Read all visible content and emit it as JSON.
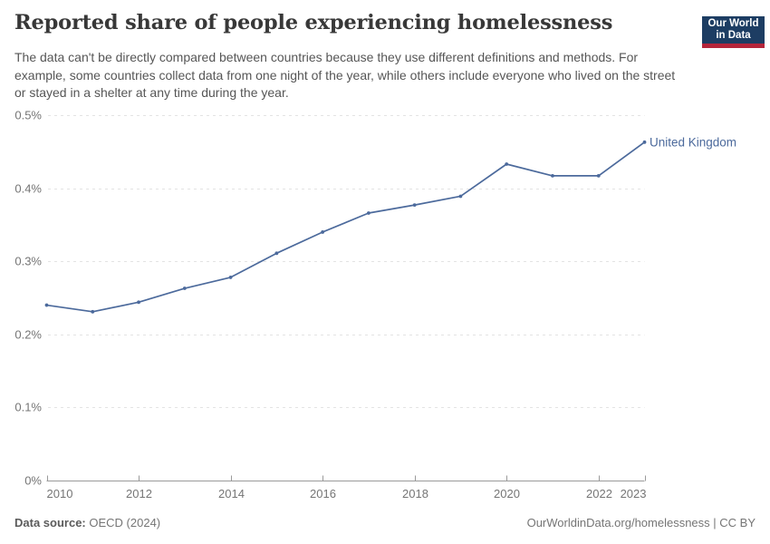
{
  "header": {
    "title": "Reported share of people experiencing homelessness",
    "subtitle": "The data can't be directly compared between countries because they use different definitions and methods. For example, some countries collect data from one night of the year, while others include everyone who lived on the street or stayed in a shelter at any time during the year."
  },
  "logo": {
    "line1": "Our World",
    "line2": "in Data",
    "bg_color": "#1d3d63",
    "accent_color": "#b5253b"
  },
  "chart_data": {
    "type": "line",
    "title": "Reported share of people experiencing homelessness",
    "xlabel": "",
    "ylabel": "",
    "unit": "%",
    "grid": true,
    "legend_position": "end-of-line",
    "x": [
      2010,
      2011,
      2012,
      2013,
      2014,
      2015,
      2016,
      2017,
      2018,
      2019,
      2020,
      2021,
      2022,
      2023
    ],
    "series": [
      {
        "name": "United Kingdom",
        "color": "#4C6A9C",
        "values": [
          0.24,
          0.231,
          0.244,
          0.263,
          0.278,
          0.311,
          0.34,
          0.366,
          0.377,
          0.389,
          0.433,
          0.417,
          0.417,
          0.463
        ]
      }
    ],
    "ylim": [
      0,
      0.5
    ],
    "y_ticks": [
      {
        "value": 0,
        "label": "0%"
      },
      {
        "value": 0.1,
        "label": "0.1%"
      },
      {
        "value": 0.2,
        "label": "0.2%"
      },
      {
        "value": 0.3,
        "label": "0.3%"
      },
      {
        "value": 0.4,
        "label": "0.4%"
      },
      {
        "value": 0.5,
        "label": "0.5%"
      }
    ],
    "x_ticks": [
      2010,
      2012,
      2014,
      2016,
      2018,
      2020,
      2022,
      2023
    ]
  },
  "footer": {
    "source_label": "Data source:",
    "source_value": "OECD (2024)",
    "credit": "OurWorldinData.org/homelessness | CC BY"
  }
}
